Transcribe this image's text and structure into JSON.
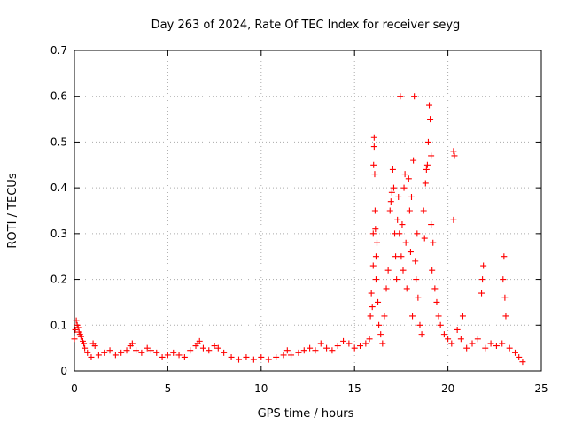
{
  "chart_data": {
    "type": "scatter",
    "title": "Day 263 of 2024, Rate Of TEC Index for receiver seyg",
    "xlabel": "GPS time / hours",
    "ylabel": "ROTI / TECUs",
    "xlim": [
      0,
      25
    ],
    "ylim": [
      0,
      0.7
    ],
    "xticks": [
      "0",
      "5",
      "10",
      "15",
      "20",
      "25"
    ],
    "yticks": [
      "0",
      "0.1",
      "0.2",
      "0.3",
      "0.4",
      "0.5",
      "0.6",
      "0.7"
    ],
    "grid": true,
    "marker": "+",
    "color": "#ff0000",
    "series": [
      {
        "points": [
          [
            0.0,
            0.07
          ],
          [
            0.05,
            0.09
          ],
          [
            0.1,
            0.11
          ],
          [
            0.15,
            0.1
          ],
          [
            0.2,
            0.095
          ],
          [
            0.25,
            0.085
          ],
          [
            0.3,
            0.08
          ],
          [
            0.35,
            0.075
          ],
          [
            0.45,
            0.065
          ],
          [
            0.5,
            0.06
          ],
          [
            0.55,
            0.05
          ],
          [
            0.7,
            0.04
          ],
          [
            0.9,
            0.03
          ],
          [
            1.0,
            0.06
          ],
          [
            1.1,
            0.055
          ],
          [
            1.3,
            0.035
          ],
          [
            1.6,
            0.04
          ],
          [
            1.9,
            0.045
          ],
          [
            2.2,
            0.035
          ],
          [
            2.5,
            0.04
          ],
          [
            2.8,
            0.045
          ],
          [
            3.0,
            0.055
          ],
          [
            3.1,
            0.06
          ],
          [
            3.3,
            0.045
          ],
          [
            3.6,
            0.04
          ],
          [
            3.9,
            0.05
          ],
          [
            4.1,
            0.045
          ],
          [
            4.4,
            0.04
          ],
          [
            4.7,
            0.03
          ],
          [
            5.0,
            0.035
          ],
          [
            5.3,
            0.04
          ],
          [
            5.6,
            0.035
          ],
          [
            5.9,
            0.03
          ],
          [
            6.2,
            0.045
          ],
          [
            6.5,
            0.055
          ],
          [
            6.6,
            0.06
          ],
          [
            6.7,
            0.065
          ],
          [
            6.9,
            0.05
          ],
          [
            7.2,
            0.045
          ],
          [
            7.5,
            0.055
          ],
          [
            7.7,
            0.05
          ],
          [
            8.0,
            0.04
          ],
          [
            8.4,
            0.03
          ],
          [
            8.8,
            0.025
          ],
          [
            9.2,
            0.03
          ],
          [
            9.6,
            0.025
          ],
          [
            10.0,
            0.03
          ],
          [
            10.4,
            0.025
          ],
          [
            10.8,
            0.03
          ],
          [
            11.2,
            0.035
          ],
          [
            11.4,
            0.045
          ],
          [
            11.6,
            0.035
          ],
          [
            12.0,
            0.04
          ],
          [
            12.3,
            0.045
          ],
          [
            12.6,
            0.05
          ],
          [
            12.9,
            0.045
          ],
          [
            13.2,
            0.06
          ],
          [
            13.5,
            0.05
          ],
          [
            13.8,
            0.045
          ],
          [
            14.1,
            0.055
          ],
          [
            14.4,
            0.065
          ],
          [
            14.7,
            0.06
          ],
          [
            15.0,
            0.05
          ],
          [
            15.3,
            0.055
          ],
          [
            15.6,
            0.06
          ],
          [
            15.8,
            0.07
          ],
          [
            15.85,
            0.12
          ],
          [
            15.9,
            0.17
          ],
          [
            15.95,
            0.14
          ],
          [
            16.0,
            0.23
          ],
          [
            16.0,
            0.3
          ],
          [
            16.02,
            0.45
          ],
          [
            16.05,
            0.49
          ],
          [
            16.05,
            0.51
          ],
          [
            16.08,
            0.43
          ],
          [
            16.1,
            0.35
          ],
          [
            16.12,
            0.31
          ],
          [
            16.15,
            0.25
          ],
          [
            16.15,
            0.2
          ],
          [
            16.2,
            0.28
          ],
          [
            16.25,
            0.15
          ],
          [
            16.3,
            0.1
          ],
          [
            16.4,
            0.08
          ],
          [
            16.5,
            0.06
          ],
          [
            16.6,
            0.12
          ],
          [
            16.7,
            0.18
          ],
          [
            16.8,
            0.22
          ],
          [
            16.9,
            0.35
          ],
          [
            16.95,
            0.37
          ],
          [
            17.0,
            0.39
          ],
          [
            17.05,
            0.44
          ],
          [
            17.1,
            0.4
          ],
          [
            17.15,
            0.3
          ],
          [
            17.2,
            0.25
          ],
          [
            17.25,
            0.2
          ],
          [
            17.3,
            0.33
          ],
          [
            17.35,
            0.38
          ],
          [
            17.4,
            0.3
          ],
          [
            17.45,
            0.6
          ],
          [
            17.5,
            0.25
          ],
          [
            17.55,
            0.32
          ],
          [
            17.6,
            0.22
          ],
          [
            17.65,
            0.4
          ],
          [
            17.7,
            0.43
          ],
          [
            17.75,
            0.28
          ],
          [
            17.8,
            0.18
          ],
          [
            17.9,
            0.42
          ],
          [
            17.95,
            0.35
          ],
          [
            18.0,
            0.26
          ],
          [
            18.05,
            0.38
          ],
          [
            18.1,
            0.12
          ],
          [
            18.15,
            0.46
          ],
          [
            18.2,
            0.6
          ],
          [
            18.25,
            0.24
          ],
          [
            18.3,
            0.2
          ],
          [
            18.35,
            0.3
          ],
          [
            18.4,
            0.16
          ],
          [
            18.5,
            0.1
          ],
          [
            18.6,
            0.08
          ],
          [
            18.7,
            0.35
          ],
          [
            18.75,
            0.29
          ],
          [
            18.8,
            0.41
          ],
          [
            18.85,
            0.44
          ],
          [
            18.9,
            0.45
          ],
          [
            18.95,
            0.5
          ],
          [
            19.0,
            0.58
          ],
          [
            19.05,
            0.55
          ],
          [
            19.1,
            0.47
          ],
          [
            19.1,
            0.32
          ],
          [
            19.15,
            0.22
          ],
          [
            19.2,
            0.28
          ],
          [
            19.3,
            0.18
          ],
          [
            19.4,
            0.15
          ],
          [
            19.5,
            0.12
          ],
          [
            19.6,
            0.1
          ],
          [
            19.8,
            0.08
          ],
          [
            20.0,
            0.07
          ],
          [
            20.2,
            0.06
          ],
          [
            20.3,
            0.48
          ],
          [
            20.35,
            0.47
          ],
          [
            20.3,
            0.33
          ],
          [
            20.5,
            0.09
          ],
          [
            20.7,
            0.07
          ],
          [
            20.8,
            0.12
          ],
          [
            21.0,
            0.05
          ],
          [
            21.3,
            0.06
          ],
          [
            21.6,
            0.07
          ],
          [
            21.8,
            0.17
          ],
          [
            21.85,
            0.2
          ],
          [
            21.9,
            0.23
          ],
          [
            22.0,
            0.05
          ],
          [
            22.3,
            0.06
          ],
          [
            22.6,
            0.055
          ],
          [
            22.9,
            0.06
          ],
          [
            22.95,
            0.2
          ],
          [
            23.0,
            0.25
          ],
          [
            23.05,
            0.16
          ],
          [
            23.1,
            0.12
          ],
          [
            23.3,
            0.05
          ],
          [
            23.6,
            0.04
          ],
          [
            23.8,
            0.03
          ],
          [
            24.0,
            0.02
          ]
        ]
      }
    ]
  }
}
